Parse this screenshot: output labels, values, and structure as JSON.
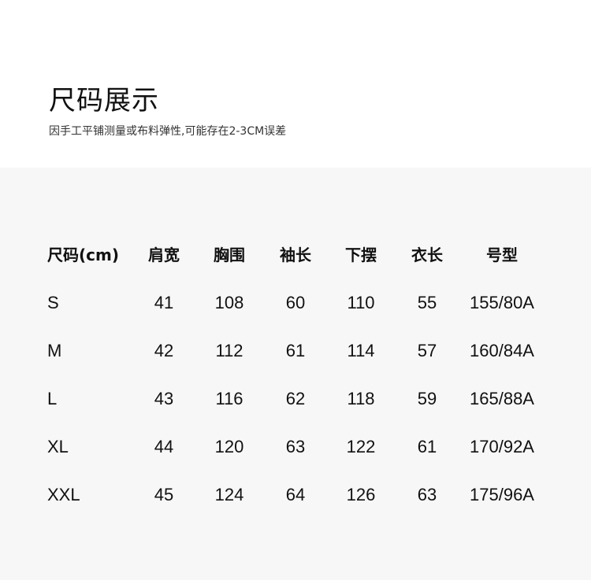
{
  "title": "尺码展示",
  "subtitle": "因手工平铺测量或布料弹性,可能存在2-3CM误差",
  "table": {
    "headers": [
      "尺码(cm)",
      "肩宽",
      "胸围",
      "袖长",
      "下摆",
      "衣长",
      "号型"
    ],
    "rows": [
      [
        "S",
        "41",
        "108",
        "60",
        "110",
        "55",
        "155/80A"
      ],
      [
        "M",
        "42",
        "112",
        "61",
        "114",
        "57",
        "160/84A"
      ],
      [
        "L",
        "43",
        "116",
        "62",
        "118",
        "59",
        "165/88A"
      ],
      [
        "XL",
        "44",
        "120",
        "63",
        "122",
        "61",
        "170/92A"
      ],
      [
        "XXL",
        "45",
        "124",
        "64",
        "126",
        "63",
        "175/96A"
      ]
    ]
  }
}
